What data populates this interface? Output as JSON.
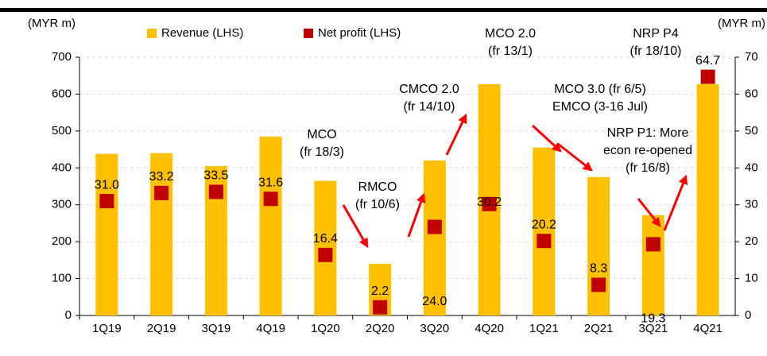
{
  "chart_data": {
    "type": "bar",
    "y_label": "(MYR m)",
    "y2_label": "(MYR m)",
    "categories": [
      "1Q19",
      "2Q19",
      "3Q19",
      "4Q19",
      "1Q20",
      "2Q20",
      "3Q20",
      "4Q20",
      "1Q21",
      "2Q21",
      "3Q21",
      "4Q21"
    ],
    "series": [
      {
        "name": "Revenue (LHS)",
        "color": "#FFC000",
        "type": "bar",
        "values": [
          438,
          440,
          405,
          485,
          365,
          140,
          420,
          627,
          455,
          375,
          272,
          627
        ]
      },
      {
        "name": "Net profit (LHS)",
        "color": "#C00000",
        "type": "scatter",
        "axis": "y2",
        "values": [
          31,
          33.2,
          33.5,
          31.6,
          16.4,
          2.2,
          24,
          30.2,
          20.2,
          8.3,
          19.3,
          64.7
        ],
        "value_labels": [
          "31.0",
          "33.2",
          "33.5",
          "31.6",
          "16.4",
          "2.2",
          "24.0",
          "30.2",
          "20.2",
          "8.3",
          "19.3",
          "64.7"
        ]
      }
    ],
    "ylim": [
      0,
      700
    ],
    "yticks": [
      0,
      100,
      200,
      300,
      400,
      500,
      600,
      700
    ],
    "y2lim": [
      0,
      70
    ],
    "y2ticks": [
      0,
      10,
      20,
      30,
      40,
      50,
      60,
      70
    ],
    "grid": true,
    "annotations": [
      [
        "MCO",
        "(fr 18/3)"
      ],
      [
        "RMCO",
        "(fr 10/6)"
      ],
      [
        "CMCO 2.0",
        "(fr 14/10)"
      ],
      [
        "MCO 2.0",
        "(fr 13/1)"
      ],
      [
        "MCO 3.0 (fr 6/5)",
        "EMCO (3-16 Jul)"
      ],
      [
        "NRP P1: More",
        "econ re-opened",
        "(fr 16/8)"
      ],
      [
        "NRP P4",
        "(fr 18/10)"
      ]
    ]
  }
}
